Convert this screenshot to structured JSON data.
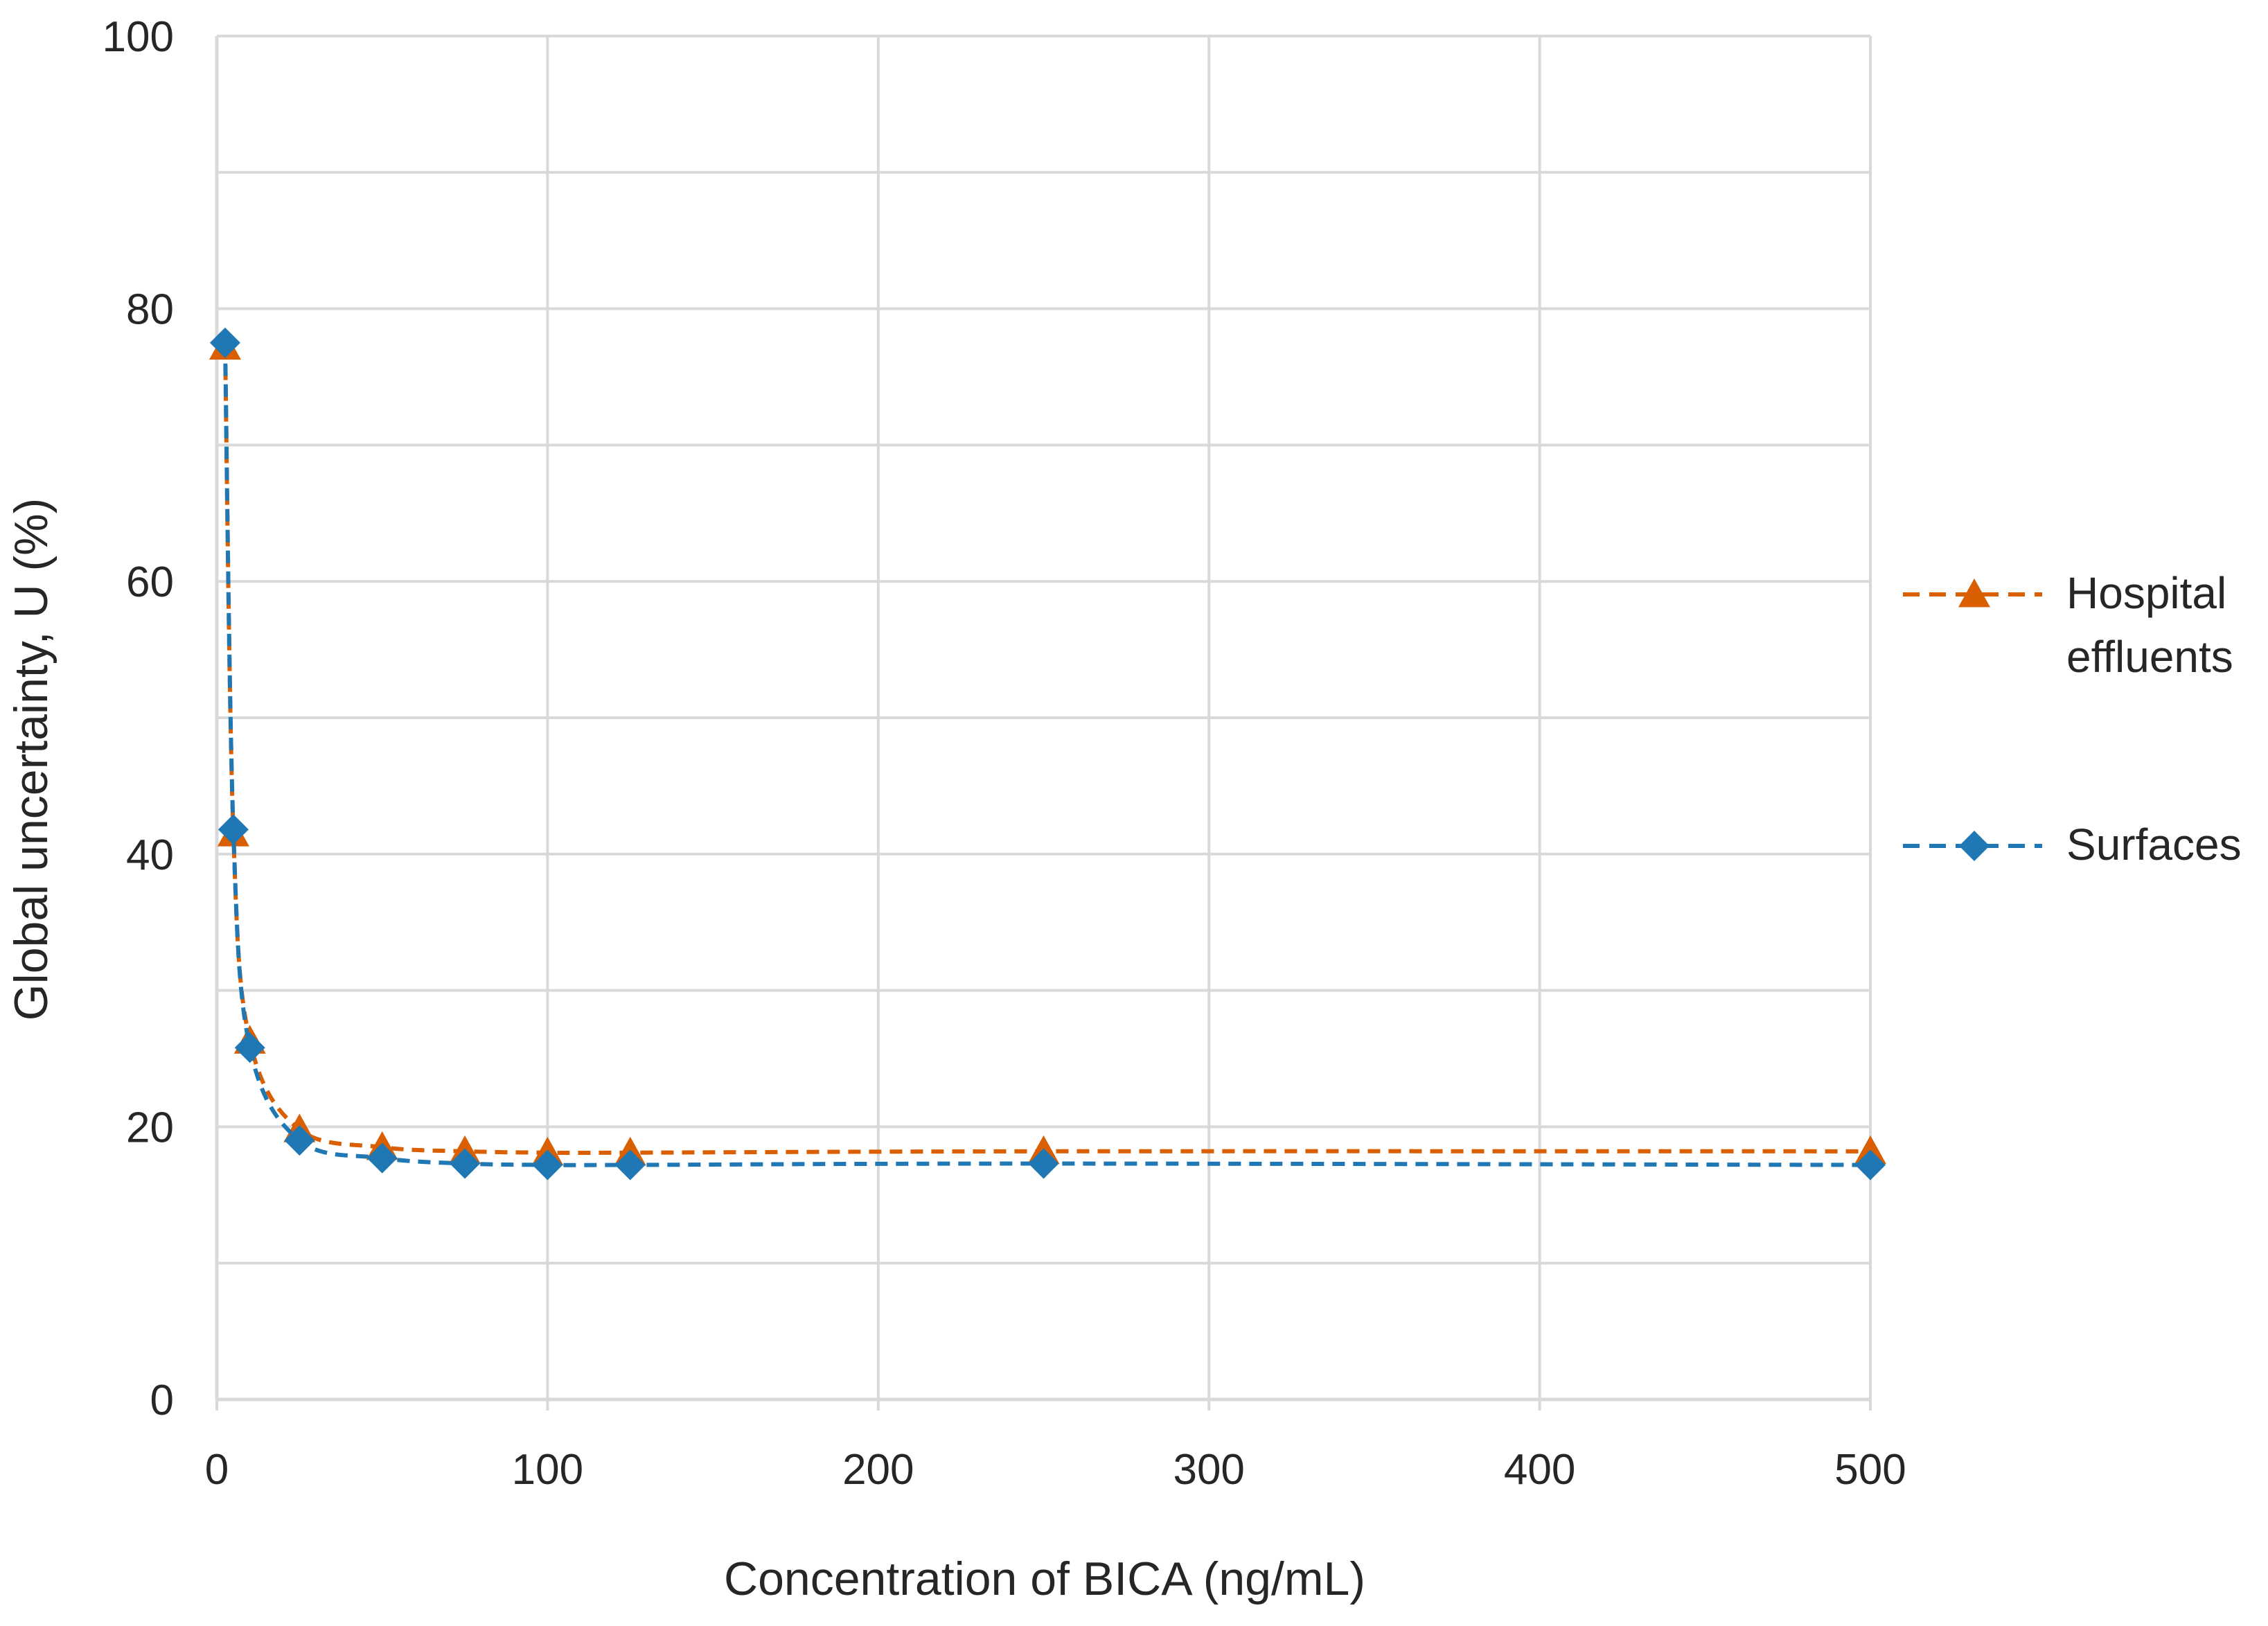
{
  "chart_data": {
    "type": "line",
    "title": "",
    "xlabel": "Concentration of BICA (ng/mL)",
    "ylabel": "Global uncertainty, U (%)",
    "xlim": [
      0,
      500
    ],
    "ylim": [
      0,
      100
    ],
    "xticks": [
      0,
      100,
      200,
      300,
      400,
      500
    ],
    "yticks": [
      0,
      20,
      40,
      60,
      80,
      100
    ],
    "x_tick_labels": [
      "0",
      "100",
      "200",
      "300",
      "400",
      "500"
    ],
    "y_tick_labels": [
      "0",
      "20",
      "40",
      "60",
      "80",
      "100"
    ],
    "grid": true,
    "legend_position": "right",
    "x": [
      2.5,
      5,
      10,
      25,
      50,
      75,
      100,
      125,
      250,
      500
    ],
    "series": [
      {
        "name": "Hospital effluents",
        "legend_lines": [
          "Hospital",
          "effluents"
        ],
        "color": "#d95f02",
        "marker": "triangle",
        "line_style": "dashed",
        "values": [
          77.2,
          41.5,
          26.3,
          19.8,
          18.5,
          18.2,
          18.1,
          18.1,
          18.2,
          18.2
        ]
      },
      {
        "name": "Surfaces",
        "legend_lines": [
          "Surfaces"
        ],
        "color": "#1f77b4",
        "marker": "diamond",
        "line_style": "dashed",
        "values": [
          77.5,
          41.8,
          25.8,
          19.0,
          17.7,
          17.3,
          17.2,
          17.2,
          17.3,
          17.2
        ]
      }
    ]
  }
}
